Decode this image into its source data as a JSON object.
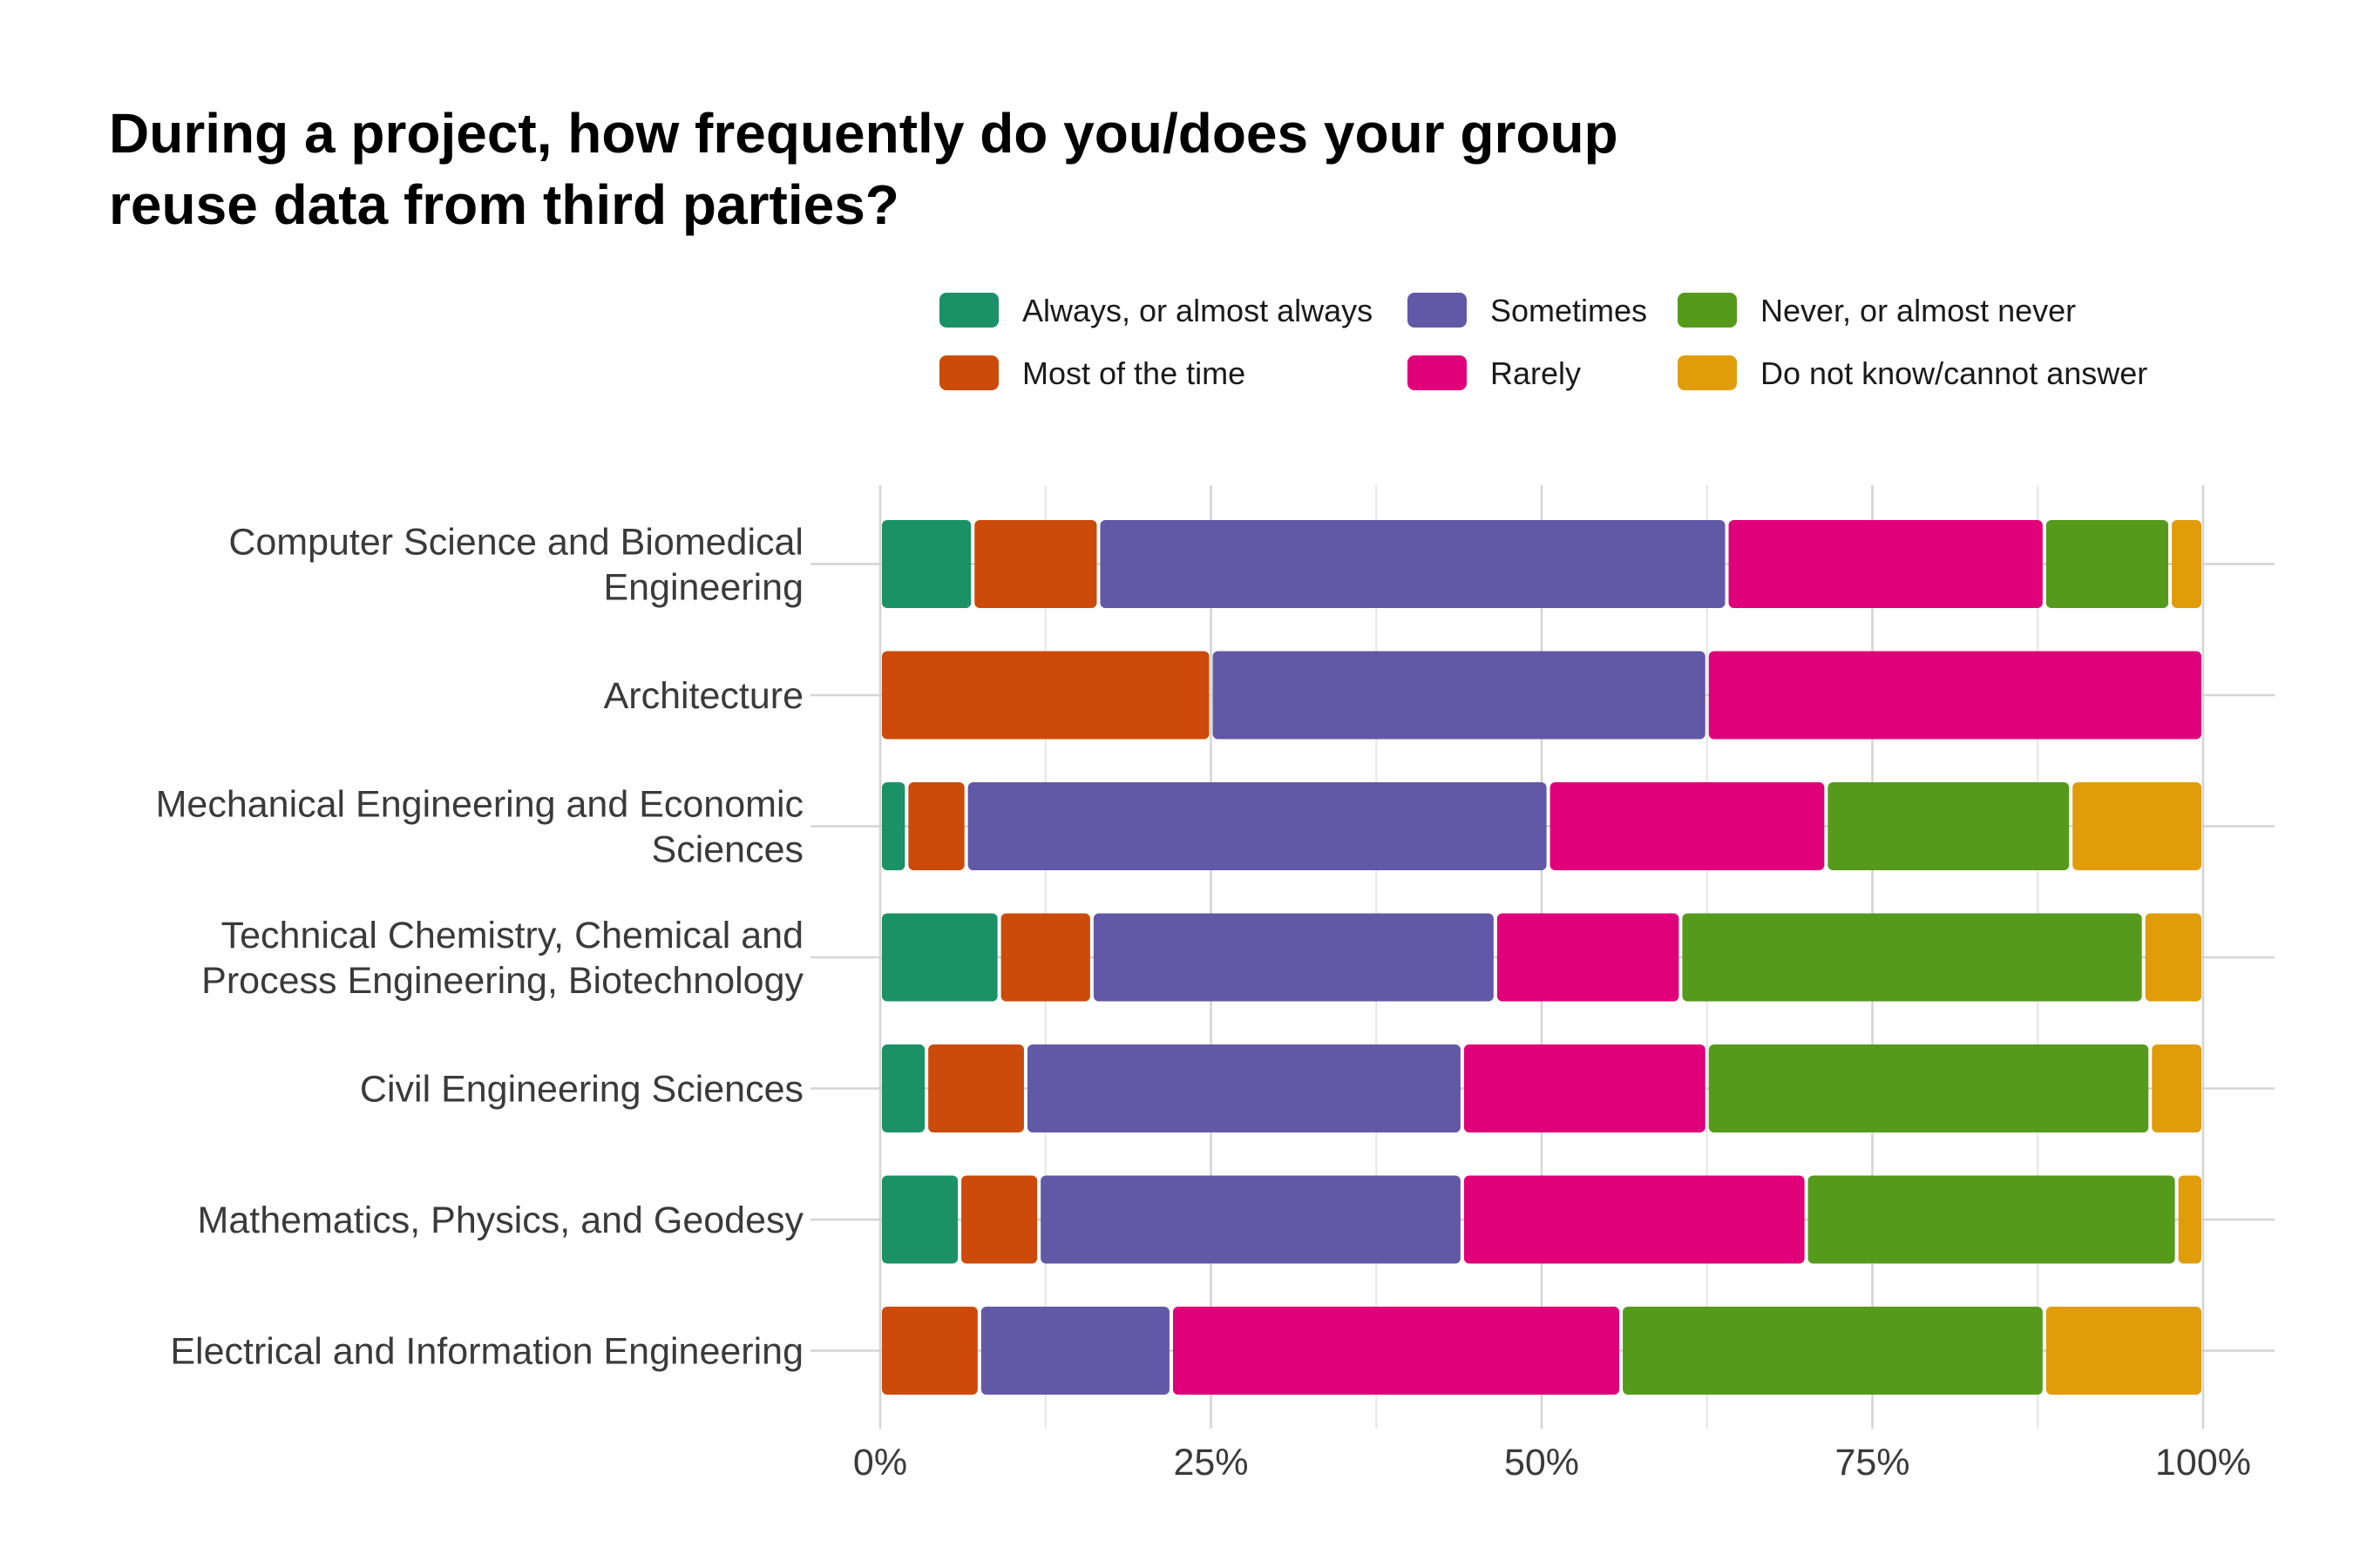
{
  "chart_data": {
    "type": "bar",
    "orientation": "horizontal",
    "stacked": true,
    "title": "During a project, how frequently do you/does your group reuse data from third parties?",
    "title_lines": [
      "During a project, how frequently do you/does your group",
      "reuse data from third parties?"
    ],
    "xlabel": "",
    "ylabel": "",
    "xlim": [
      0,
      100
    ],
    "x_ticks": [
      0,
      25,
      50,
      75,
      100
    ],
    "x_tick_labels": [
      "0%",
      "25%",
      "50%",
      "75%",
      "100%"
    ],
    "grid": true,
    "legend_position": "top",
    "categories": [
      {
        "label_lines": [
          "Computer Science and Biomedical",
          "Engineering"
        ]
      },
      {
        "label_lines": [
          "Architecture"
        ]
      },
      {
        "label_lines": [
          "Mechanical Engineering and Economic",
          "Sciences"
        ]
      },
      {
        "label_lines": [
          "Technical Chemistry, Chemical and",
          "Process Engineering, Biotechnology"
        ]
      },
      {
        "label_lines": [
          "Civil Engineering Sciences"
        ]
      },
      {
        "label_lines": [
          "Mathematics, Physics, and Geodesy"
        ]
      },
      {
        "label_lines": [
          "Electrical and Information Engineering"
        ]
      }
    ],
    "series": [
      {
        "name": "Always, or almost always",
        "color": "#1b9168",
        "values": [
          7,
          0,
          2,
          9,
          3.5,
          6,
          0
        ]
      },
      {
        "name": "Most of the time",
        "color": "#cc4b0a",
        "values": [
          9.5,
          25,
          4.5,
          7,
          7.5,
          6,
          7.5
        ]
      },
      {
        "name": "Sometimes",
        "color": "#6159a6",
        "values": [
          47.5,
          37.5,
          44,
          30.5,
          33,
          32,
          14.5
        ]
      },
      {
        "name": "Rarely",
        "color": "#e0007a",
        "values": [
          24,
          37.5,
          21,
          14,
          18.5,
          26,
          34
        ]
      },
      {
        "name": "Never, or almost never",
        "color": "#569a1c",
        "values": [
          9.5,
          0,
          18.5,
          35,
          33.5,
          28,
          32
        ]
      },
      {
        "name": "Do not know/cannot answer",
        "color": "#e09d09",
        "values": [
          2.5,
          0,
          10,
          4.5,
          4,
          2,
          12
        ]
      }
    ],
    "legend_order": [
      0,
      2,
      4,
      1,
      3,
      5
    ]
  }
}
